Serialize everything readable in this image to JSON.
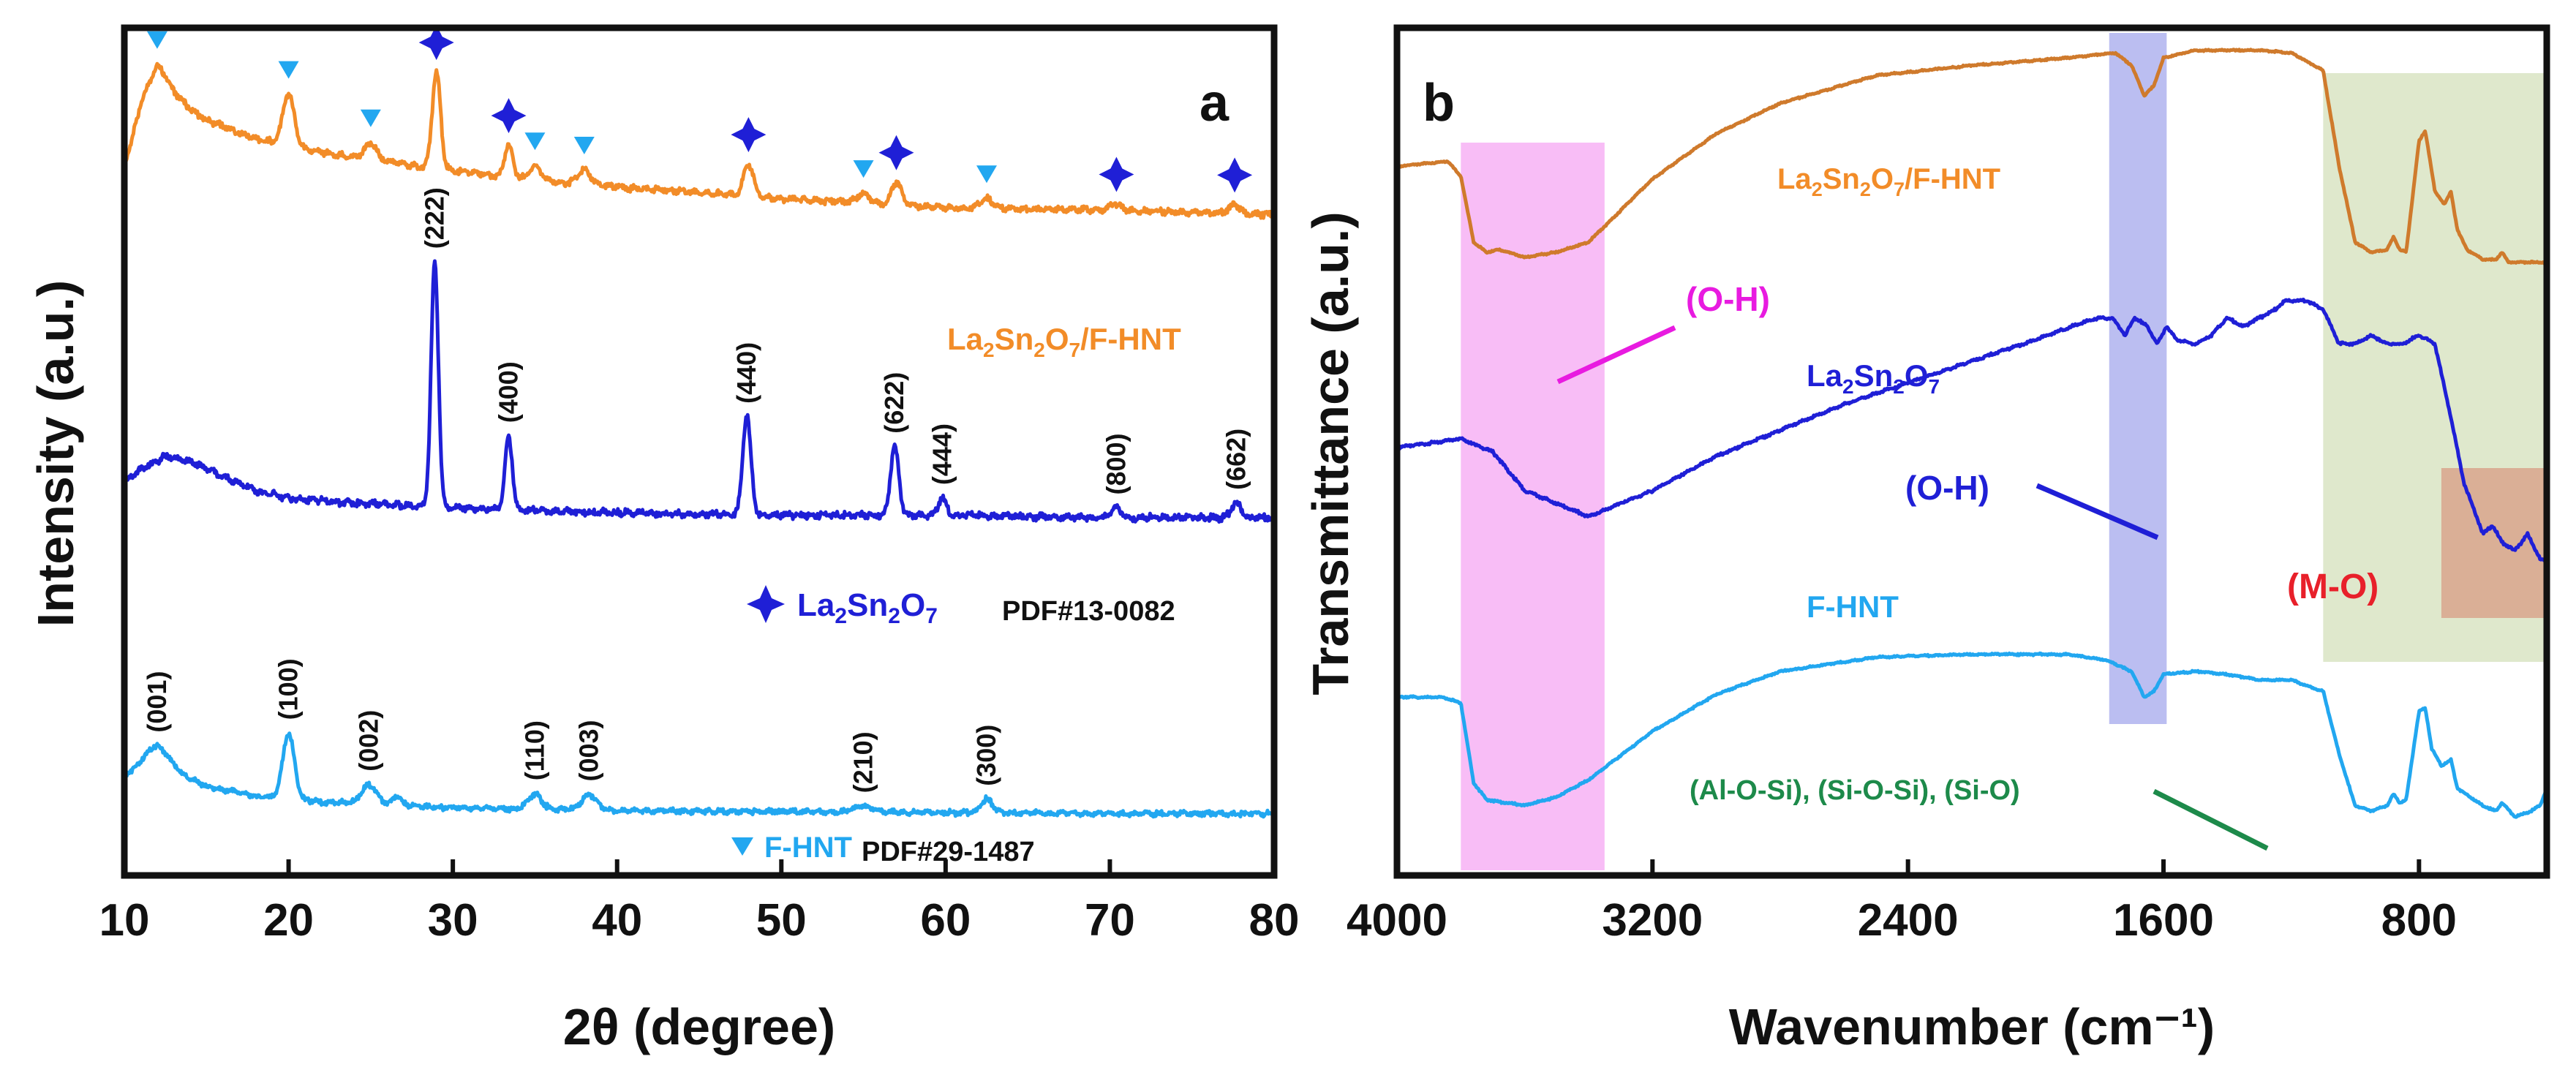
{
  "chart_data": [
    {
      "type": "line",
      "panel_label": "a",
      "xlabel": "2θ (degree)",
      "ylabel": "Intensity (a.u.)",
      "xlim": [
        10,
        80
      ],
      "x_ticks": [
        "10",
        "20",
        "30",
        "40",
        "50",
        "60",
        "70",
        "80"
      ],
      "series": [
        {
          "name": "La₂Sn₂O₇/F-HNT",
          "color": "#f28c28",
          "baseline": [
            [
              10,
              0.58
            ],
            [
              11,
              0.82
            ],
            [
              12,
              0.96
            ],
            [
              13,
              0.88
            ],
            [
              15,
              0.78
            ],
            [
              18,
              0.7
            ],
            [
              22,
              0.64
            ],
            [
              26,
              0.6
            ],
            [
              30,
              0.56
            ],
            [
              35,
              0.52
            ],
            [
              40,
              0.49
            ],
            [
              50,
              0.44
            ],
            [
              60,
              0.4
            ],
            [
              70,
              0.39
            ],
            [
              80,
              0.37
            ]
          ],
          "peaks": [
            [
              12,
              0.06,
              0.8
            ],
            [
              20,
              0.22,
              0.35
            ],
            [
              25,
              0.07,
              0.35
            ],
            [
              29,
              0.42,
              0.25
            ],
            [
              33.4,
              0.14,
              0.25
            ],
            [
              35,
              0.06,
              0.35
            ],
            [
              38,
              0.06,
              0.4
            ],
            [
              48,
              0.14,
              0.3
            ],
            [
              55,
              0.04,
              0.4
            ],
            [
              57,
              0.1,
              0.3
            ],
            [
              62.5,
              0.04,
              0.4
            ],
            [
              70.3,
              0.03,
              0.3
            ],
            [
              77.6,
              0.04,
              0.3
            ]
          ]
        },
        {
          "name": "La₂Sn₂O₇",
          "color": "#1f1fd6",
          "baseline": [
            [
              10,
              0.37
            ],
            [
              11,
              0.43
            ],
            [
              12.5,
              0.48
            ],
            [
              14,
              0.46
            ],
            [
              16,
              0.4
            ],
            [
              18,
              0.34
            ],
            [
              20,
              0.31
            ],
            [
              24,
              0.29
            ],
            [
              30,
              0.27
            ],
            [
              40,
              0.25
            ],
            [
              50,
              0.24
            ],
            [
              60,
              0.24
            ],
            [
              70,
              0.23
            ],
            [
              80,
              0.23
            ]
          ],
          "peaks": [
            [
              28.9,
              1.0,
              0.22
            ],
            [
              33.4,
              0.3,
              0.22
            ],
            [
              47.9,
              0.4,
              0.25
            ],
            [
              56.9,
              0.28,
              0.25
            ],
            [
              59.8,
              0.07,
              0.25
            ],
            [
              70.4,
              0.04,
              0.3
            ],
            [
              77.7,
              0.06,
              0.3
            ]
          ]
        },
        {
          "name": "F-HNT",
          "color": "#22a7f0",
          "baseline": [
            [
              10,
              0.2
            ],
            [
              11,
              0.24
            ],
            [
              12,
              0.26
            ],
            [
              13,
              0.22
            ],
            [
              15,
              0.15
            ],
            [
              18,
              0.1
            ],
            [
              22,
              0.07
            ],
            [
              30,
              0.04
            ],
            [
              40,
              0.025
            ],
            [
              50,
              0.02
            ],
            [
              60,
              0.015
            ],
            [
              70,
              0.01
            ],
            [
              80,
              0.01
            ]
          ],
          "peaks": [
            [
              12,
              0.1,
              0.8
            ],
            [
              20,
              0.34,
              0.35
            ],
            [
              24.9,
              0.1,
              0.45
            ],
            [
              26.6,
              0.05,
              0.25
            ],
            [
              35,
              0.08,
              0.4
            ],
            [
              38.3,
              0.08,
              0.45
            ],
            [
              55,
              0.03,
              0.6
            ],
            [
              62.5,
              0.07,
              0.35
            ]
          ]
        }
      ],
      "series_labels": [
        {
          "id": "lsfh",
          "text": "La₂Sn₂O₇/F-HNT",
          "color": "#f28c28"
        },
        {
          "id": "ref_lso",
          "text": "La₂Sn₂O₇",
          "color": "#1f1fd6"
        },
        {
          "id": "ref_lso_pdf",
          "text": "PDF#13-0082",
          "color": "#111111"
        },
        {
          "id": "ref_fhnt",
          "text": "F-HNT",
          "color": "#22a7f0"
        },
        {
          "id": "ref_fhnt_pdf",
          "text": "PDF#29-1487",
          "color": "#111111"
        }
      ],
      "annotations": {
        "lso_hkl": [
          {
            "x": 28.9,
            "label": "(222)"
          },
          {
            "x": 33.4,
            "label": "(400)"
          },
          {
            "x": 47.9,
            "label": "(440)"
          },
          {
            "x": 56.9,
            "label": "(622)"
          },
          {
            "x": 59.8,
            "label": "(444)"
          },
          {
            "x": 70.4,
            "label": "(800)"
          },
          {
            "x": 77.7,
            "label": "(662)"
          }
        ],
        "fhnt_hkl": [
          {
            "x": 12,
            "label": "(001)"
          },
          {
            "x": 20,
            "label": "(100)"
          },
          {
            "x": 24.9,
            "label": "(002)"
          },
          {
            "x": 35,
            "label": "(110)"
          },
          {
            "x": 38.3,
            "label": "(003)"
          },
          {
            "x": 55,
            "label": "(210)"
          },
          {
            "x": 62.5,
            "label": "(300)"
          }
        ],
        "triangle_markers_x": [
          12,
          20,
          25,
          35,
          38,
          55,
          62.5
        ],
        "star_markers_x": [
          29,
          33.4,
          48,
          57,
          70.4,
          77.6
        ]
      }
    },
    {
      "type": "line",
      "panel_label": "b",
      "xlabel": "Wavenumber (cm⁻¹)",
      "ylabel": "Transmittance (a.u.)",
      "xlim": [
        4000,
        400
      ],
      "x_ticks": [
        "4000",
        "3200",
        "2400",
        "1600",
        "800"
      ],
      "x_tick_values": [
        4000,
        3200,
        2400,
        1600,
        800
      ],
      "highlight_bands": [
        {
          "from": 3800,
          "to": 3350,
          "color": "#f7b6f5"
        },
        {
          "from": 1770,
          "to": 1590,
          "color": "#b4b7f0"
        },
        {
          "from": 1100,
          "to": 400,
          "color": "#dbe6c6"
        },
        {
          "from": 730,
          "to": 400,
          "color": "#d9a48c"
        }
      ],
      "series": [
        {
          "name": "La₂Sn₂O₇/F-HNT",
          "color": "#cf7a2c",
          "points": [
            [
              4000,
              0.5
            ],
            [
              3840,
              0.52
            ],
            [
              3800,
              0.46
            ],
            [
              3760,
              0.2
            ],
            [
              3720,
              0.16
            ],
            [
              3680,
              0.17
            ],
            [
              3600,
              0.14
            ],
            [
              3500,
              0.16
            ],
            [
              3400,
              0.2
            ],
            [
              3200,
              0.45
            ],
            [
              3000,
              0.63
            ],
            [
              2800,
              0.75
            ],
            [
              2500,
              0.86
            ],
            [
              2200,
              0.9
            ],
            [
              1900,
              0.93
            ],
            [
              1750,
              0.95
            ],
            [
              1700,
              0.9
            ],
            [
              1660,
              0.78
            ],
            [
              1630,
              0.82
            ],
            [
              1600,
              0.93
            ],
            [
              1500,
              0.96
            ],
            [
              1300,
              0.96
            ],
            [
              1200,
              0.95
            ],
            [
              1100,
              0.88
            ],
            [
              1050,
              0.5
            ],
            [
              1000,
              0.2
            ],
            [
              950,
              0.16
            ],
            [
              900,
              0.17
            ],
            [
              880,
              0.22
            ],
            [
              860,
              0.17
            ],
            [
              840,
              0.16
            ],
            [
              800,
              0.6
            ],
            [
              780,
              0.64
            ],
            [
              750,
              0.4
            ],
            [
              720,
              0.35
            ],
            [
              700,
              0.4
            ],
            [
              680,
              0.25
            ],
            [
              650,
              0.17
            ],
            [
              600,
              0.13
            ],
            [
              560,
              0.13
            ],
            [
              540,
              0.16
            ],
            [
              520,
              0.12
            ],
            [
              450,
              0.12
            ],
            [
              400,
              0.12
            ]
          ]
        },
        {
          "name": "La₂Sn₂O₇",
          "color": "#1f1fd6",
          "points": [
            [
              4000,
              0.48
            ],
            [
              3800,
              0.5
            ],
            [
              3700,
              0.47
            ],
            [
              3600,
              0.38
            ],
            [
              3400,
              0.32
            ],
            [
              3200,
              0.38
            ],
            [
              3000,
              0.46
            ],
            [
              2800,
              0.52
            ],
            [
              2600,
              0.58
            ],
            [
              2400,
              0.63
            ],
            [
              2200,
              0.68
            ],
            [
              2000,
              0.73
            ],
            [
              1850,
              0.77
            ],
            [
              1800,
              0.78
            ],
            [
              1760,
              0.78
            ],
            [
              1720,
              0.74
            ],
            [
              1690,
              0.78
            ],
            [
              1650,
              0.76
            ],
            [
              1620,
              0.72
            ],
            [
              1590,
              0.76
            ],
            [
              1560,
              0.73
            ],
            [
              1500,
              0.72
            ],
            [
              1450,
              0.74
            ],
            [
              1400,
              0.78
            ],
            [
              1350,
              0.76
            ],
            [
              1300,
              0.78
            ],
            [
              1250,
              0.8
            ],
            [
              1220,
              0.82
            ],
            [
              1150,
              0.82
            ],
            [
              1100,
              0.8
            ],
            [
              1050,
              0.72
            ],
            [
              1000,
              0.72
            ],
            [
              950,
              0.74
            ],
            [
              900,
              0.72
            ],
            [
              850,
              0.72
            ],
            [
              800,
              0.74
            ],
            [
              750,
              0.72
            ],
            [
              700,
              0.55
            ],
            [
              660,
              0.4
            ],
            [
              600,
              0.28
            ],
            [
              570,
              0.3
            ],
            [
              540,
              0.26
            ],
            [
              500,
              0.24
            ],
            [
              460,
              0.28
            ],
            [
              420,
              0.22
            ],
            [
              400,
              0.22
            ]
          ]
        },
        {
          "name": "F-HNT",
          "color": "#22a7f0",
          "points": [
            [
              4000,
              0.62
            ],
            [
              3860,
              0.62
            ],
            [
              3800,
              0.6
            ],
            [
              3760,
              0.32
            ],
            [
              3720,
              0.26
            ],
            [
              3660,
              0.25
            ],
            [
              3600,
              0.24
            ],
            [
              3500,
              0.27
            ],
            [
              3400,
              0.33
            ],
            [
              3200,
              0.5
            ],
            [
              3000,
              0.63
            ],
            [
              2800,
              0.71
            ],
            [
              2500,
              0.76
            ],
            [
              2200,
              0.77
            ],
            [
              1900,
              0.77
            ],
            [
              1780,
              0.75
            ],
            [
              1700,
              0.71
            ],
            [
              1660,
              0.62
            ],
            [
              1630,
              0.64
            ],
            [
              1600,
              0.7
            ],
            [
              1500,
              0.71
            ],
            [
              1400,
              0.7
            ],
            [
              1300,
              0.68
            ],
            [
              1200,
              0.68
            ],
            [
              1100,
              0.64
            ],
            [
              1050,
              0.42
            ],
            [
              1000,
              0.24
            ],
            [
              950,
              0.22
            ],
            [
              900,
              0.24
            ],
            [
              880,
              0.28
            ],
            [
              860,
              0.25
            ],
            [
              840,
              0.26
            ],
            [
              800,
              0.57
            ],
            [
              780,
              0.58
            ],
            [
              760,
              0.44
            ],
            [
              730,
              0.38
            ],
            [
              700,
              0.4
            ],
            [
              680,
              0.3
            ],
            [
              640,
              0.27
            ],
            [
              600,
              0.24
            ],
            [
              560,
              0.22
            ],
            [
              540,
              0.25
            ],
            [
              500,
              0.2
            ],
            [
              450,
              0.22
            ],
            [
              420,
              0.24
            ],
            [
              400,
              0.3
            ]
          ]
        }
      ],
      "series_labels": [
        {
          "id": "lsfh",
          "text": "La₂Sn₂O₇/F-HNT",
          "color": "#f28c28"
        },
        {
          "id": "lso",
          "text": "La₂Sn₂O₇",
          "color": "#1f1fd6"
        },
        {
          "id": "fhnt",
          "text": "F-HNT",
          "color": "#22a7f0"
        }
      ],
      "annotations": [
        {
          "id": "oh1",
          "text": "(O-H)",
          "color": "#e81be0"
        },
        {
          "id": "oh2",
          "text": "(O-H)",
          "color": "#1f1fd6"
        },
        {
          "id": "mo",
          "text": "(M-O)",
          "color": "#e8202a"
        },
        {
          "id": "sio",
          "text": "(Al-O-Si), (Si-O-Si), (Si-O)",
          "color": "#1d8a4a"
        }
      ]
    }
  ]
}
